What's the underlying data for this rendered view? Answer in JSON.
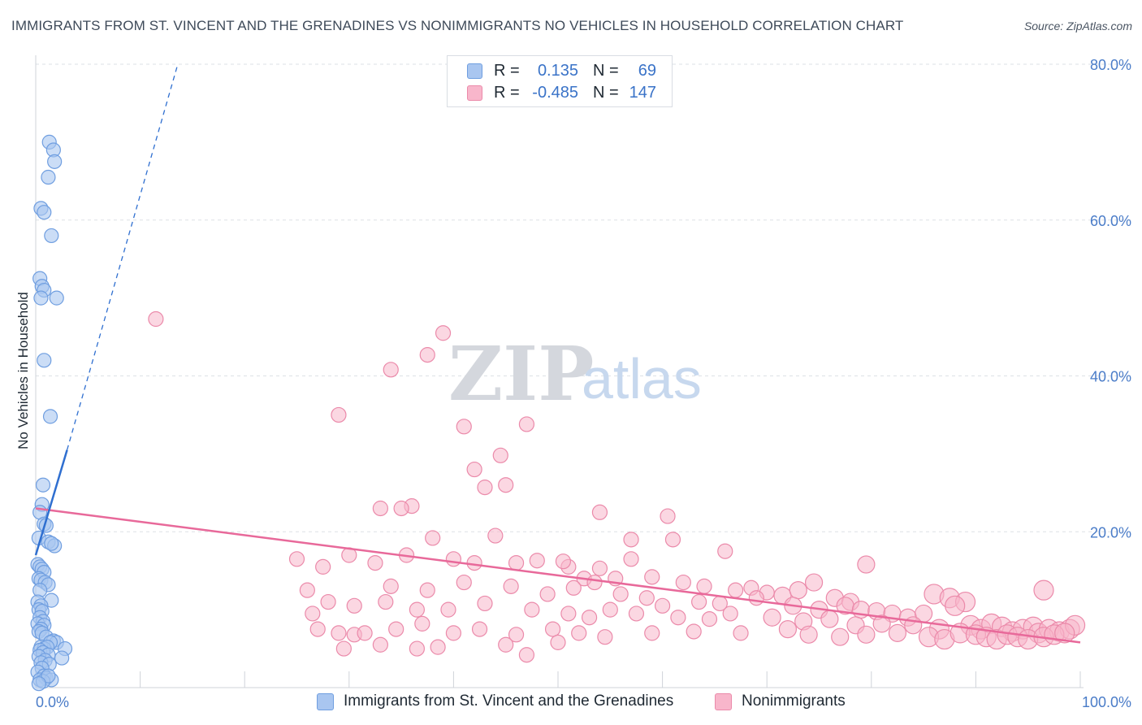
{
  "title": "IMMIGRANTS FROM ST. VINCENT AND THE GRENADINES VS NONIMMIGRANTS NO VEHICLES IN HOUSEHOLD CORRELATION CHART",
  "source": "Source: ZipAtlas.com",
  "watermark": {
    "zip": "ZIP",
    "atlas": "atlas"
  },
  "legend": {
    "rows": [
      {
        "r_label": "R =",
        "r_value": "0.135",
        "n_label": "N =",
        "n_value": "69"
      },
      {
        "r_label": "R =",
        "r_value": "-0.485",
        "n_label": "N =",
        "n_value": "147"
      }
    ]
  },
  "bottom_legend": {
    "series1": "Immigrants from St. Vincent and the Grenadines",
    "series2": "Nonimmigrants"
  },
  "colors": {
    "series1_fill": "#a9c6f0",
    "series1_stroke": "#6f9ee0",
    "series1_line": "#2f6fd0",
    "series2_fill": "#f8b6cb",
    "series2_stroke": "#eb8aaa",
    "series2_line": "#e8699a",
    "tick_text": "#4a7cc8",
    "grid": "#dde1e6"
  },
  "chart_data": {
    "type": "scatter",
    "title": "IMMIGRANTS FROM ST. VINCENT AND THE GRENADINES VS NONIMMIGRANTS NO VEHICLES IN HOUSEHOLD CORRELATION CHART",
    "xlabel": "",
    "ylabel": "No Vehicles in Household",
    "xlim": [
      0,
      100
    ],
    "ylim": [
      0,
      80
    ],
    "x_ticks": [
      "0.0%",
      "100.0%"
    ],
    "y_ticks": [
      "20.0%",
      "40.0%",
      "60.0%",
      "80.0%"
    ],
    "y_tick_values": [
      20,
      40,
      60,
      80
    ],
    "grid": true,
    "series": [
      {
        "name": "Immigrants from St. Vincent and the Grenadines",
        "r": 0.135,
        "n": 69,
        "trend_solid": [
          [
            0.0,
            17.0
          ],
          [
            3.0,
            30.5
          ]
        ],
        "trend_dashed": [
          [
            3.0,
            30.5
          ],
          [
            13.6,
            80.0
          ]
        ],
        "points": [
          [
            1.3,
            70.0
          ],
          [
            1.7,
            69.0
          ],
          [
            1.8,
            67.5
          ],
          [
            1.2,
            65.5
          ],
          [
            0.5,
            61.5
          ],
          [
            0.8,
            61.0
          ],
          [
            1.5,
            58.0
          ],
          [
            0.4,
            52.5
          ],
          [
            0.6,
            51.5
          ],
          [
            0.8,
            51.0
          ],
          [
            0.5,
            50.0
          ],
          [
            2.0,
            50.0
          ],
          [
            0.8,
            42.0
          ],
          [
            1.4,
            34.8
          ],
          [
            0.7,
            26.0
          ],
          [
            0.6,
            23.5
          ],
          [
            0.4,
            22.5
          ],
          [
            0.8,
            21.0
          ],
          [
            1.0,
            20.8
          ],
          [
            0.3,
            19.2
          ],
          [
            1.2,
            18.7
          ],
          [
            1.8,
            18.2
          ],
          [
            1.5,
            18.5
          ],
          [
            0.2,
            15.8
          ],
          [
            0.4,
            15.5
          ],
          [
            0.6,
            15.2
          ],
          [
            0.8,
            14.8
          ],
          [
            0.3,
            14.0
          ],
          [
            0.5,
            13.8
          ],
          [
            0.9,
            13.5
          ],
          [
            1.2,
            13.2
          ],
          [
            0.4,
            12.5
          ],
          [
            1.5,
            11.2
          ],
          [
            0.2,
            11.0
          ],
          [
            0.5,
            10.5
          ],
          [
            0.3,
            10.0
          ],
          [
            0.6,
            9.8
          ],
          [
            0.4,
            9.0
          ],
          [
            0.7,
            8.5
          ],
          [
            0.2,
            8.2
          ],
          [
            0.8,
            8.0
          ],
          [
            0.5,
            7.5
          ],
          [
            0.3,
            7.2
          ],
          [
            0.6,
            7.0
          ],
          [
            1.0,
            6.5
          ],
          [
            1.7,
            6.0
          ],
          [
            2.0,
            5.8
          ],
          [
            1.4,
            5.8
          ],
          [
            0.5,
            5.2
          ],
          [
            0.8,
            5.0
          ],
          [
            1.1,
            5.2
          ],
          [
            2.8,
            5.0
          ],
          [
            0.4,
            4.8
          ],
          [
            0.7,
            4.5
          ],
          [
            1.2,
            4.2
          ],
          [
            0.3,
            4.0
          ],
          [
            2.5,
            3.8
          ],
          [
            0.9,
            3.5
          ],
          [
            0.5,
            3.2
          ],
          [
            1.3,
            3.0
          ],
          [
            0.6,
            2.5
          ],
          [
            0.2,
            2.0
          ],
          [
            0.8,
            1.5
          ],
          [
            1.0,
            1.2
          ],
          [
            0.4,
            1.0
          ],
          [
            1.5,
            1.0
          ],
          [
            0.7,
            0.8
          ],
          [
            1.2,
            1.5
          ],
          [
            0.3,
            0.5
          ]
        ]
      },
      {
        "name": "Nonimmigrants",
        "r": -0.485,
        "n": 147,
        "trend": [
          [
            0.0,
            23.0
          ],
          [
            100.0,
            5.8
          ]
        ],
        "points": [
          [
            11.5,
            47.3
          ],
          [
            39.0,
            45.5
          ],
          [
            37.5,
            42.7
          ],
          [
            34.0,
            40.8
          ],
          [
            29.0,
            35.0
          ],
          [
            41.0,
            33.5
          ],
          [
            47.0,
            33.8
          ],
          [
            44.5,
            29.8
          ],
          [
            42.0,
            28.0
          ],
          [
            45.0,
            26.0
          ],
          [
            43.0,
            25.7
          ],
          [
            36.0,
            23.3
          ],
          [
            33.0,
            23.0
          ],
          [
            35.0,
            23.0
          ],
          [
            54.0,
            22.5
          ],
          [
            60.5,
            22.0
          ],
          [
            38.0,
            19.2
          ],
          [
            44.0,
            19.5
          ],
          [
            57.0,
            19.0
          ],
          [
            61.0,
            19.0
          ],
          [
            25.0,
            16.5
          ],
          [
            30.0,
            17.0
          ],
          [
            35.5,
            17.0
          ],
          [
            42.0,
            16.0
          ],
          [
            48.0,
            16.3
          ],
          [
            51.0,
            15.5
          ],
          [
            54.0,
            15.3
          ],
          [
            57.0,
            16.5
          ],
          [
            66.0,
            17.5
          ],
          [
            79.5,
            15.8
          ],
          [
            27.5,
            15.5
          ],
          [
            32.5,
            16.0
          ],
          [
            40.0,
            16.5
          ],
          [
            46.0,
            16.0
          ],
          [
            50.5,
            16.2
          ],
          [
            52.5,
            14.0
          ],
          [
            53.5,
            13.5
          ],
          [
            55.5,
            14.0
          ],
          [
            59.0,
            14.2
          ],
          [
            62.0,
            13.5
          ],
          [
            64.0,
            13.0
          ],
          [
            67.0,
            12.5
          ],
          [
            68.5,
            12.8
          ],
          [
            70.0,
            12.2
          ],
          [
            71.5,
            11.8
          ],
          [
            73.0,
            12.5
          ],
          [
            74.5,
            13.5
          ],
          [
            76.5,
            11.5
          ],
          [
            78.0,
            11.0
          ],
          [
            86.0,
            12.0
          ],
          [
            87.5,
            11.5
          ],
          [
            89.0,
            11.0
          ],
          [
            96.5,
            12.5
          ],
          [
            34.0,
            13.0
          ],
          [
            37.5,
            12.5
          ],
          [
            41.0,
            13.5
          ],
          [
            45.5,
            13.0
          ],
          [
            49.0,
            12.0
          ],
          [
            51.5,
            12.8
          ],
          [
            56.0,
            12.0
          ],
          [
            58.5,
            11.5
          ],
          [
            60.0,
            10.5
          ],
          [
            63.5,
            11.0
          ],
          [
            65.5,
            10.8
          ],
          [
            69.0,
            11.5
          ],
          [
            72.5,
            10.5
          ],
          [
            75.0,
            10.0
          ],
          [
            77.5,
            10.5
          ],
          [
            79.0,
            10.0
          ],
          [
            80.5,
            9.8
          ],
          [
            82.0,
            9.5
          ],
          [
            83.5,
            9.0
          ],
          [
            85.0,
            9.5
          ],
          [
            88.0,
            10.5
          ],
          [
            26.0,
            12.5
          ],
          [
            28.0,
            11.0
          ],
          [
            30.5,
            10.5
          ],
          [
            33.5,
            11.0
          ],
          [
            36.5,
            10.0
          ],
          [
            39.5,
            10.0
          ],
          [
            43.0,
            10.8
          ],
          [
            47.5,
            10.0
          ],
          [
            51.0,
            9.5
          ],
          [
            53.0,
            9.0
          ],
          [
            55.0,
            10.0
          ],
          [
            57.5,
            9.5
          ],
          [
            61.5,
            9.0
          ],
          [
            64.5,
            8.8
          ],
          [
            66.5,
            9.5
          ],
          [
            70.5,
            9.0
          ],
          [
            73.5,
            8.5
          ],
          [
            76.0,
            8.8
          ],
          [
            78.5,
            8.0
          ],
          [
            81.0,
            8.2
          ],
          [
            84.0,
            8.0
          ],
          [
            86.5,
            7.5
          ],
          [
            89.5,
            8.0
          ],
          [
            90.5,
            7.5
          ],
          [
            91.5,
            8.2
          ],
          [
            92.5,
            7.8
          ],
          [
            93.5,
            7.2
          ],
          [
            94.5,
            7.5
          ],
          [
            95.5,
            7.8
          ],
          [
            96.0,
            7.0
          ],
          [
            97.0,
            7.5
          ],
          [
            98.0,
            7.2
          ],
          [
            99.0,
            7.5
          ],
          [
            99.5,
            8.0
          ],
          [
            26.5,
            9.5
          ],
          [
            27.0,
            7.5
          ],
          [
            29.0,
            7.0
          ],
          [
            30.5,
            6.8
          ],
          [
            31.5,
            7.0
          ],
          [
            34.5,
            7.5
          ],
          [
            37.0,
            8.2
          ],
          [
            40.0,
            7.0
          ],
          [
            42.5,
            7.5
          ],
          [
            46.0,
            6.8
          ],
          [
            49.5,
            7.5
          ],
          [
            52.0,
            7.0
          ],
          [
            54.5,
            6.5
          ],
          [
            59.0,
            7.0
          ],
          [
            63.0,
            7.2
          ],
          [
            67.5,
            7.0
          ],
          [
            72.0,
            7.5
          ],
          [
            74.0,
            6.8
          ],
          [
            77.0,
            6.5
          ],
          [
            79.5,
            6.8
          ],
          [
            82.5,
            7.0
          ],
          [
            85.5,
            6.5
          ],
          [
            87.0,
            6.2
          ],
          [
            88.5,
            7.0
          ],
          [
            90.0,
            6.8
          ],
          [
            91.0,
            6.5
          ],
          [
            92.0,
            6.2
          ],
          [
            93.0,
            6.8
          ],
          [
            94.0,
            6.5
          ],
          [
            95.0,
            6.2
          ],
          [
            96.5,
            6.5
          ],
          [
            97.5,
            6.8
          ],
          [
            98.5,
            7.0
          ],
          [
            29.5,
            5.0
          ],
          [
            33.0,
            5.5
          ],
          [
            36.5,
            5.0
          ],
          [
            38.5,
            5.2
          ],
          [
            45.0,
            5.5
          ],
          [
            50.0,
            5.8
          ],
          [
            47.0,
            4.2
          ]
        ]
      }
    ]
  }
}
